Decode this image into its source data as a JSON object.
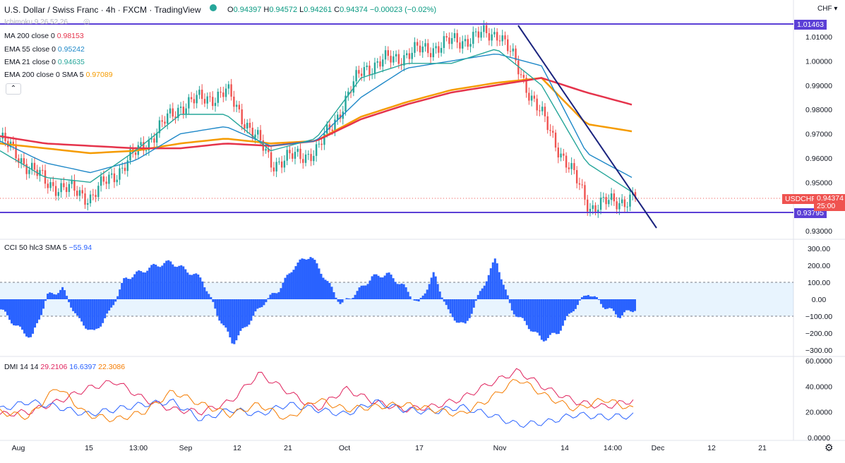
{
  "header": {
    "symbol": "U.S. Dollar / Swiss Franc · 4h · FXCM · TradingView",
    "ohlc": {
      "o_label": "O",
      "o": "0.94397",
      "h_label": "H",
      "h": "0.94572",
      "l_label": "L",
      "l": "0.94261",
      "c_label": "C",
      "c": "0.94374",
      "chg": "−0.00023 (−0.02%)"
    },
    "ichimoku": "Ichimoku 9 26 52 26",
    "currency": "CHF ▾"
  },
  "indicators": [
    {
      "label": "MA 200 close 0",
      "value": "0.98153",
      "color": "#e5334b"
    },
    {
      "label": "EMA 55 close 0",
      "value": "0.95242",
      "color": "#1e88c8"
    },
    {
      "label": "EMA 21 close 0",
      "value": "0.94635",
      "color": "#26a69a"
    },
    {
      "label": "EMA 200 close 0 SMA 5",
      "value": "0.97089",
      "color": "#f59b00"
    }
  ],
  "price_axis": {
    "ticks": [
      "1.01000",
      "1.00000",
      "0.99000",
      "0.98000",
      "0.97000",
      "0.96000",
      "0.95000",
      "0.93000"
    ],
    "resistance": "1.01463",
    "support": "0.93795",
    "current": "0.94374",
    "countdown": "25:00",
    "symbol_tag": "USDCHF"
  },
  "cci": {
    "label": "CCI 50 hlc3 SMA 5",
    "value": "−55.94",
    "ticks": [
      "300.00",
      "200.00",
      "100.00",
      "0.00",
      "−100.00",
      "−200.00",
      "−300.00"
    ]
  },
  "dmi": {
    "label": "DMI 14 14",
    "values": [
      {
        "v": "29.2106",
        "color": "#e0245e"
      },
      {
        "v": "16.6397",
        "color": "#2962ff"
      },
      {
        "v": "22.3086",
        "color": "#f57c00"
      }
    ],
    "ticks": [
      "60.0000",
      "40.0000",
      "20.0000",
      "0.0000"
    ]
  },
  "time_axis": [
    "Aug",
    "15",
    "13:00",
    "Sep",
    "12",
    "21",
    "Oct",
    "17",
    "Nov",
    "14",
    "14:00",
    "Dec",
    "12",
    "21"
  ],
  "colors": {
    "up": "#26a69a",
    "down": "#ef5350",
    "hline": "#5b3fd6",
    "trend": "#1a237e",
    "cci": "#2962ff"
  },
  "chart_data": [
    {
      "type": "line",
      "title": "U.S. Dollar / Swiss Franc · 4h · FXCM",
      "x_labels": [
        "Aug",
        "15",
        "13:00",
        "Sep",
        "12",
        "21",
        "Oct",
        "17",
        "Nov",
        "14",
        "14:00",
        "Dec"
      ],
      "ylim": [
        0.93,
        1.02
      ],
      "series": [
        {
          "name": "EMA 200 close 0 SMA 5",
          "values": [
            0.966,
            0.964,
            0.962,
            0.963,
            0.966,
            0.968,
            0.966,
            0.967,
            0.977,
            0.983,
            0.988,
            0.991,
            0.993,
            0.974,
            0.971
          ]
        },
        {
          "name": "MA 200 close 0",
          "values": [
            0.969,
            0.966,
            0.965,
            0.964,
            0.964,
            0.966,
            0.965,
            0.967,
            0.976,
            0.982,
            0.987,
            0.99,
            0.993,
            0.987,
            0.982
          ]
        },
        {
          "name": "EMA 55 close 0",
          "values": [
            0.967,
            0.958,
            0.954,
            0.959,
            0.97,
            0.973,
            0.965,
            0.967,
            0.985,
            0.997,
            1.0,
            1.003,
            0.998,
            0.962,
            0.952
          ]
        },
        {
          "name": "EMA 21 close 0",
          "values": [
            0.963,
            0.952,
            0.95,
            0.963,
            0.978,
            0.978,
            0.963,
            0.968,
            0.993,
            0.999,
            0.999,
            1.005,
            0.99,
            0.958,
            0.946
          ]
        }
      ],
      "close_path": [
        0.968,
        0.95,
        0.944,
        0.962,
        0.982,
        0.987,
        0.958,
        0.963,
        0.997,
        1.003,
        1.008,
        1.012,
        0.975,
        0.94,
        0.9437
      ],
      "levels": [
        1.01463,
        0.93795
      ],
      "trendline": [
        [
          1.0146
        ],
        [
          0.932
        ]
      ]
    },
    {
      "type": "area",
      "title": "CCI 50 hlc3 SMA 5",
      "ylim": [
        -320,
        320
      ],
      "bands": [
        100,
        -100
      ],
      "values": [
        -60,
        -160,
        -230,
        20,
        60,
        -120,
        -200,
        -80,
        120,
        160,
        200,
        220,
        170,
        120,
        -90,
        -260,
        -140,
        -20,
        60,
        200,
        260,
        120,
        -30,
        40,
        130,
        150,
        80,
        -30,
        150,
        -90,
        -160,
        40,
        240,
        -60,
        -150,
        -240,
        -200,
        -60,
        40,
        -40,
        -100,
        -56
      ]
    },
    {
      "type": "line",
      "title": "DMI 14 14",
      "ylim": [
        0,
        60
      ],
      "series": [
        {
          "name": "29.2106",
          "values": [
            18,
            20,
            28,
            38,
            44,
            30,
            22,
            20,
            28,
            50,
            36,
            22,
            38,
            28,
            22,
            24,
            30,
            42,
            52,
            38,
            28,
            24,
            29
          ]
        },
        {
          "name": "16.6397",
          "values": [
            22,
            28,
            24,
            18,
            22,
            26,
            28,
            14,
            22,
            18,
            26,
            22,
            18,
            28,
            22,
            20,
            24,
            18,
            10,
            12,
            18,
            16,
            17
          ]
        },
        {
          "name": "22.3086",
          "values": [
            20,
            16,
            40,
            18,
            14,
            20,
            36,
            26,
            18,
            26,
            14,
            30,
            22,
            24,
            26,
            22,
            18,
            30,
            46,
            32,
            22,
            30,
            22
          ]
        }
      ]
    }
  ]
}
